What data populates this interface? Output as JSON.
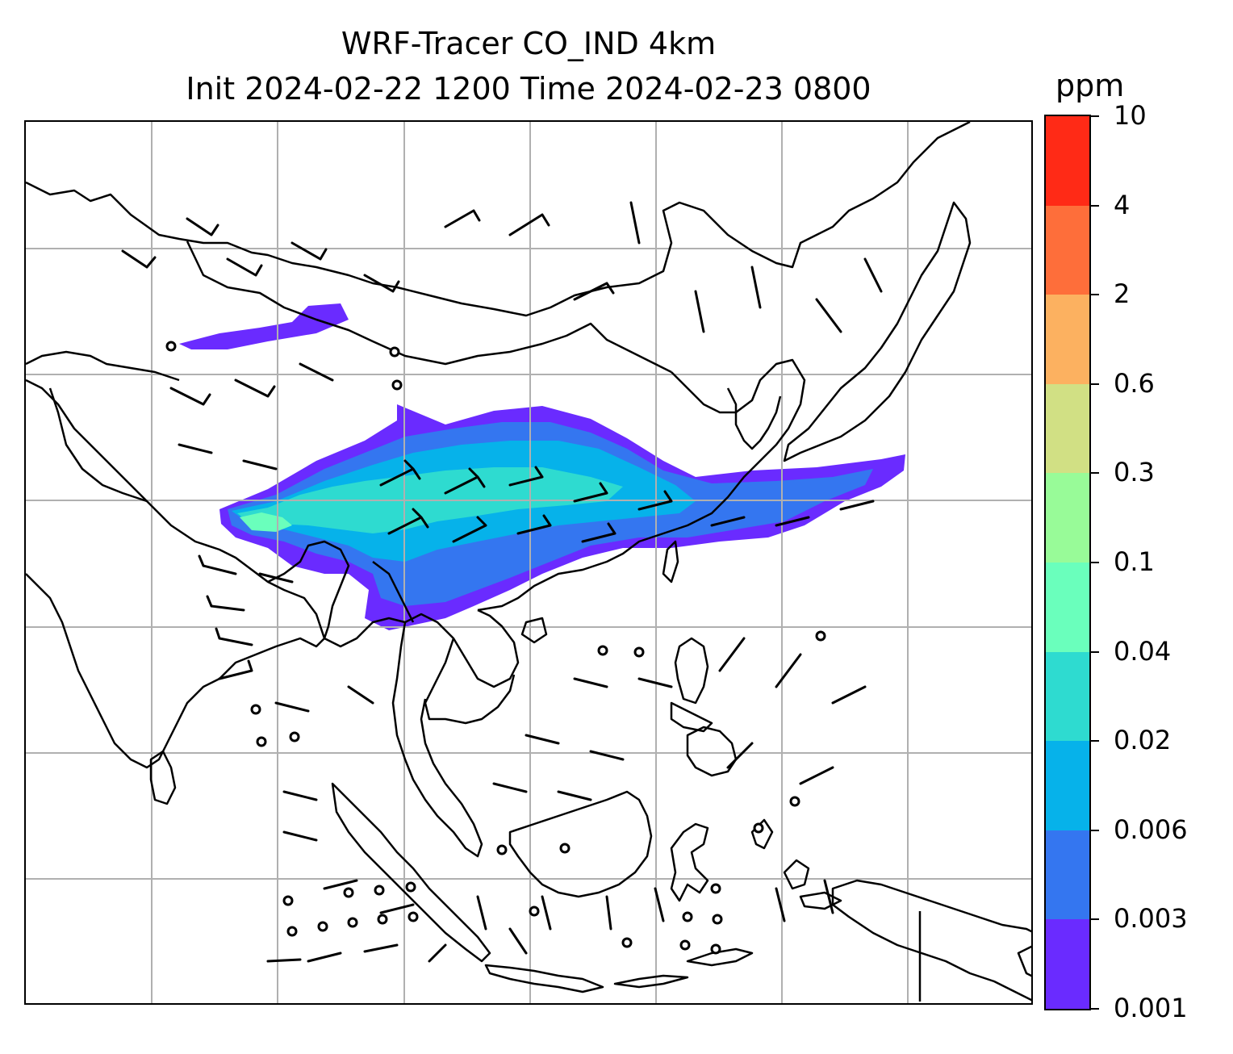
{
  "title_line1": "WRF-Tracer CO_IND 4km",
  "title_line2": "Init 2024-02-22 1200 Time 2024-02-23 0800",
  "colorbar": {
    "unit": "ppm",
    "levels": [
      "0.001",
      "0.003",
      "0.006",
      "0.02",
      "0.04",
      "0.1",
      "0.3",
      "0.6",
      "2",
      "4",
      "10"
    ],
    "colors": [
      "#6a2bff",
      "#3476f0",
      "#06b2ea",
      "#2edbd0",
      "#6affbc",
      "#98fb98",
      "#d1e084",
      "#fcb160",
      "#fe6e3a",
      "#ff2a16"
    ]
  },
  "map": {
    "gridlines": true,
    "plume_colors": [
      "#6a2bff",
      "#3476f0",
      "#06b2ea",
      "#2edbd0",
      "#6affbc"
    ],
    "wind_symbols": [
      "wind-barb-icon",
      "calm-circle-icon"
    ]
  }
}
